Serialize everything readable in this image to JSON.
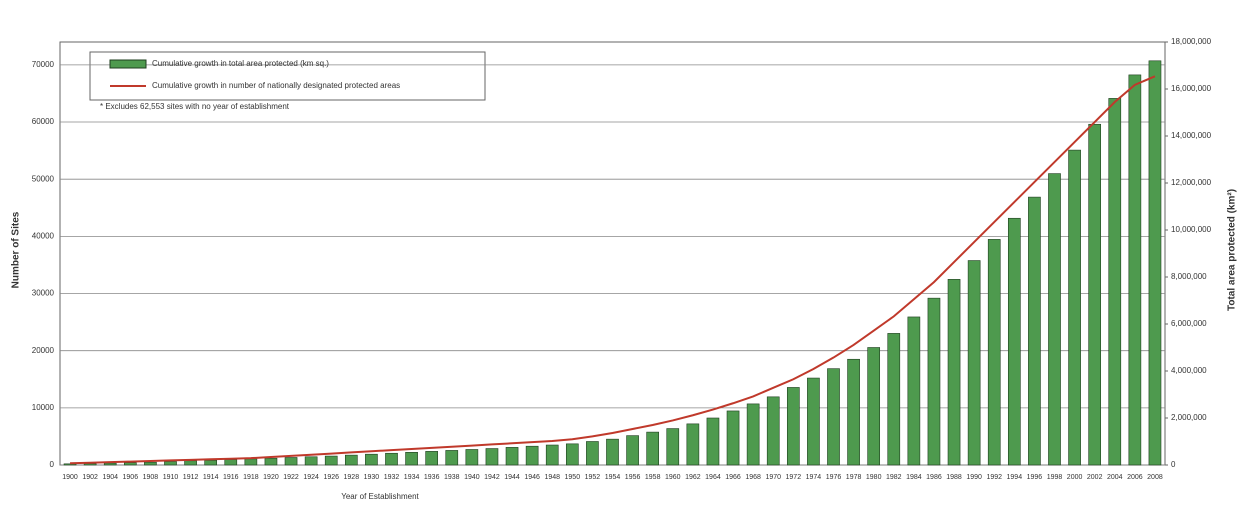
{
  "chart_data": {
    "type": "bar-line",
    "note": "* Excludes 62,553 sites with no year of establishment",
    "x_label": "Year of Establishment",
    "y_label": "Number of Sites",
    "y2_label": "Total area protected (km²)",
    "categories": [
      "1900",
      "1902",
      "1904",
      "1906",
      "1908",
      "1910",
      "1912",
      "1914",
      "1916",
      "1918",
      "1920",
      "1922",
      "1924",
      "1926",
      "1928",
      "1930",
      "1932",
      "1934",
      "1936",
      "1938",
      "1940",
      "1942",
      "1944",
      "1946",
      "1948",
      "1950",
      "1952",
      "1954",
      "1956",
      "1958",
      "1960",
      "1962",
      "1964",
      "1966",
      "1968",
      "1970",
      "1972",
      "1974",
      "1976",
      "1978",
      "1980",
      "1982",
      "1984",
      "1986",
      "1988",
      "1990",
      "1992",
      "1994",
      "1996",
      "1998",
      "2000",
      "2002",
      "2004",
      "2006",
      "2008"
    ],
    "series": [
      {
        "name": "Cumulative growth in total area protected (km sq.)",
        "type": "bar",
        "axis": "y2",
        "color": "#4e9a4e",
        "values": [
          50000,
          60000,
          80000,
          100000,
          120000,
          150000,
          180000,
          200000,
          230000,
          260000,
          290000,
          320000,
          350000,
          380000,
          420000,
          460000,
          500000,
          540000,
          580000,
          620000,
          660000,
          700000,
          750000,
          800000,
          850000,
          900000,
          1000000,
          1100000,
          1250000,
          1400000,
          1550000,
          1750000,
          2000000,
          2300000,
          2600000,
          2900000,
          3300000,
          3700000,
          4100000,
          4500000,
          5000000,
          5600000,
          6300000,
          7100000,
          7900000,
          8700000,
          9600000,
          10500000,
          11400000,
          12400000,
          13400000,
          14500000,
          15600000,
          16600000,
          17200000
        ]
      },
      {
        "name": "Cumulative growth in number of nationally designated protected areas",
        "type": "line",
        "axis": "y",
        "color": "#c0392b",
        "values": [
          300,
          400,
          500,
          600,
          700,
          800,
          900,
          1000,
          1100,
          1200,
          1400,
          1600,
          1800,
          2000,
          2200,
          2400,
          2600,
          2800,
          3000,
          3200,
          3400,
          3600,
          3800,
          4000,
          4200,
          4500,
          5000,
          5600,
          6300,
          7000,
          7800,
          8700,
          9700,
          10800,
          12000,
          13500,
          15000,
          16800,
          18800,
          21000,
          23500,
          26000,
          29000,
          32000,
          35500,
          39000,
          42500,
          46000,
          49500,
          53000,
          56500,
          60000,
          63500,
          66500,
          68000
        ]
      }
    ],
    "ylim": [
      0,
      74000
    ],
    "yticks": [
      0,
      10000,
      20000,
      30000,
      40000,
      50000,
      60000,
      70000
    ],
    "y2lim": [
      0,
      18000000
    ],
    "y2ticks": [
      {
        "value": 0,
        "label": "0"
      },
      {
        "value": 2000000,
        "label": "2,000,000"
      },
      {
        "value": 4000000,
        "label": "4,000,000"
      },
      {
        "value": 6000000,
        "label": "6,000,000"
      },
      {
        "value": 8000000,
        "label": "8,000,000"
      },
      {
        "value": 10000000,
        "label": "10,000,000"
      },
      {
        "value": 12000000,
        "label": "12,000,000"
      },
      {
        "value": 14000000,
        "label": "14,000,000"
      },
      {
        "value": 16000000,
        "label": "16,000,000"
      },
      {
        "value": 18000000,
        "label": "18,000,000"
      }
    ],
    "grid": true
  }
}
